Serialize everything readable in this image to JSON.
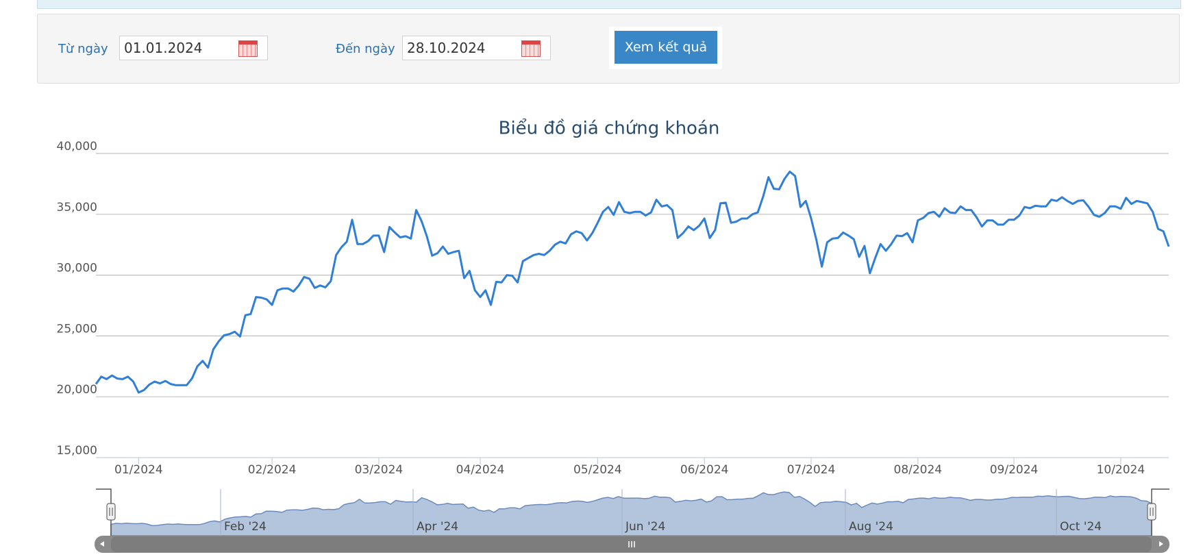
{
  "form": {
    "from_label": "Từ ngày",
    "from_value": "01.01.2024",
    "to_label": "Đến ngày",
    "to_value": "28.10.2024",
    "button": "Xem kết quả"
  },
  "chart_data": {
    "type": "line",
    "title": "Biểu đồ giá chứng khoán",
    "color": "#2f7ed8",
    "grid": true,
    "ylim": [
      15000,
      40000
    ],
    "yticks": [
      {
        "value": 15000,
        "label": "15,000"
      },
      {
        "value": 20000,
        "label": "20,000"
      },
      {
        "value": 25000,
        "label": "25,000"
      },
      {
        "value": 30000,
        "label": "30,000"
      },
      {
        "value": 35000,
        "label": "35,000"
      },
      {
        "value": 40000,
        "label": "40,000"
      }
    ],
    "categories": [
      null,
      null,
      null,
      null,
      null,
      null,
      null,
      null,
      "01/2024",
      null,
      null,
      null,
      null,
      null,
      null,
      null,
      null,
      null,
      null,
      null,
      null,
      null,
      null,
      null,
      null,
      null,
      null,
      null,
      null,
      null,
      null,
      null,
      null,
      "02/2024",
      null,
      null,
      null,
      null,
      null,
      null,
      null,
      null,
      null,
      null,
      null,
      null,
      null,
      null,
      null,
      null,
      null,
      null,
      null,
      "03/2024",
      null,
      null,
      null,
      null,
      null,
      null,
      null,
      null,
      null,
      null,
      null,
      null,
      null,
      null,
      null,
      null,
      null,
      null,
      "04/2024",
      null,
      null,
      null,
      null,
      null,
      null,
      null,
      null,
      null,
      null,
      null,
      null,
      null,
      null,
      null,
      null,
      null,
      null,
      null,
      null,
      null,
      "05/2024",
      null,
      null,
      null,
      null,
      null,
      null,
      null,
      null,
      null,
      null,
      null,
      null,
      null,
      null,
      null,
      null,
      null,
      null,
      null,
      "06/2024",
      null,
      null,
      null,
      null,
      null,
      null,
      null,
      null,
      null,
      null,
      null,
      null,
      null,
      null,
      null,
      null,
      null,
      null,
      null,
      "07/2024",
      null,
      null,
      null,
      null,
      null,
      null,
      null,
      null,
      null,
      null,
      null,
      null,
      null,
      null,
      null,
      null,
      null,
      null,
      null,
      "08/2024",
      null,
      null,
      null,
      null,
      null,
      null,
      null,
      null,
      null,
      null,
      null,
      null,
      null,
      null,
      null,
      null,
      null,
      "09/2024",
      null,
      null,
      null,
      null,
      null,
      null,
      null,
      null,
      null,
      null,
      null,
      null,
      null,
      null,
      null,
      null,
      null,
      null,
      null,
      "10/2024",
      null,
      null,
      null,
      null,
      null,
      null,
      null,
      null,
      null
    ],
    "values": [
      21050,
      21650,
      21450,
      21750,
      21500,
      21450,
      21650,
      21250,
      20350,
      20550,
      21000,
      21250,
      21100,
      21300,
      21050,
      20950,
      20950,
      20950,
      21500,
      22500,
      22950,
      22400,
      23900,
      24550,
      25050,
      25150,
      25350,
      24950,
      26700,
      26800,
      28200,
      28150,
      28000,
      27550,
      28750,
      28900,
      28900,
      28650,
      29150,
      29850,
      29700,
      28950,
      29150,
      29000,
      29500,
      31650,
      32300,
      32750,
      34550,
      32550,
      32550,
      32800,
      33250,
      33250,
      31900,
      33950,
      33500,
      33100,
      33200,
      33000,
      35350,
      34450,
      33200,
      31600,
      31800,
      32350,
      31750,
      31900,
      32000,
      29750,
      30350,
      28750,
      28200,
      28750,
      27550,
      29450,
      29400,
      30000,
      29950,
      29400,
      31150,
      31400,
      31650,
      31750,
      31650,
      32000,
      32500,
      32750,
      32600,
      33350,
      33600,
      33450,
      32850,
      33450,
      34300,
      35200,
      35600,
      34950,
      36000,
      35200,
      35100,
      35200,
      35200,
      34900,
      35150,
      36200,
      35650,
      35750,
      35350,
      33050,
      33450,
      34000,
      33700,
      34050,
      34650,
      33050,
      33700,
      35900,
      35950,
      34300,
      34400,
      34650,
      34650,
      35000,
      35150,
      36450,
      38050,
      37100,
      37050,
      37900,
      38500,
      38150,
      35600,
      36100,
      34650,
      32850,
      30700,
      32700,
      33000,
      33050,
      33500,
      33250,
      32950,
      31500,
      32400,
      30150,
      31400,
      32550,
      32000,
      32550,
      33250,
      33200,
      33450,
      32700,
      34500,
      34700,
      35100,
      35200,
      34800,
      35500,
      35150,
      35100,
      35650,
      35350,
      35350,
      34750,
      34000,
      34500,
      34500,
      34150,
      34150,
      34550,
      34550,
      34900,
      35600,
      35500,
      35700,
      35650,
      35650,
      36200,
      36100,
      36400,
      36100,
      35850,
      36100,
      36150,
      35600,
      34950,
      34800,
      35100,
      35650,
      35650,
      35450,
      36350,
      35850,
      36100,
      36000,
      35900,
      35200,
      33800,
      33600,
      32350
    ]
  },
  "navigator": {
    "labels": [
      "Feb '24",
      "Apr '24",
      "Jun '24",
      "Aug '24",
      "Oct '24"
    ]
  }
}
